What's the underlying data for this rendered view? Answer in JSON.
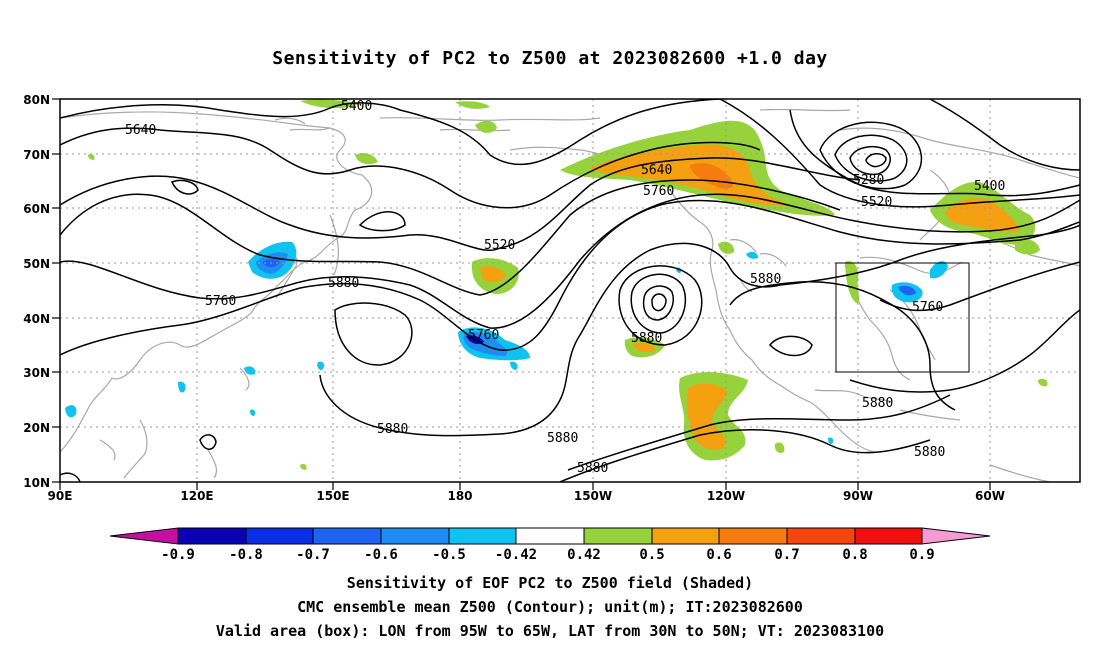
{
  "title": "Sensitivity of PC2 to Z500 at 2023082600 +1.0 day",
  "map": {
    "lat_labels": [
      "80N",
      "70N",
      "60N",
      "50N",
      "40N",
      "30N",
      "20N",
      "10N"
    ],
    "lon_labels": [
      "90E",
      "120E",
      "150E",
      "180",
      "150W",
      "120W",
      "90W",
      "60W"
    ],
    "contour_labels": [
      "5400",
      "5640",
      "5520",
      "5760",
      "5880",
      "5640",
      "5760",
      "5280",
      "5520",
      "5400",
      "5880",
      "5760",
      "5760",
      "5880",
      "5880",
      "5880",
      "5880",
      "5880",
      "5880"
    ],
    "valid_box": {
      "lon_from": "95W",
      "lon_to": "65W",
      "lat_from": "30N",
      "lat_to": "50N"
    }
  },
  "colorbar": {
    "labels": [
      "-0.9",
      "-0.8",
      "-0.7",
      "-0.6",
      "-0.5",
      "-0.42",
      "0.42",
      "0.5",
      "0.6",
      "0.7",
      "0.8",
      "0.9"
    ],
    "colors": [
      "#c40fa0",
      "#0a00b4",
      "#0a2ee6",
      "#1e64f0",
      "#1e8cf0",
      "#10c2f0",
      "#ffffff",
      "#96d23c",
      "#f5a010",
      "#f57d10",
      "#f54610",
      "#f01010",
      "#f59ad2"
    ]
  },
  "captions": {
    "line1": "Sensitivity of EOF PC2 to Z500 field (Shaded)",
    "line2": "CMC ensemble mean Z500 (Contour); unit(m); IT:2023082600",
    "line3": "Valid area (box): LON from 95W to 65W, LAT from 30N to 50N; VT: 2023083100"
  }
}
